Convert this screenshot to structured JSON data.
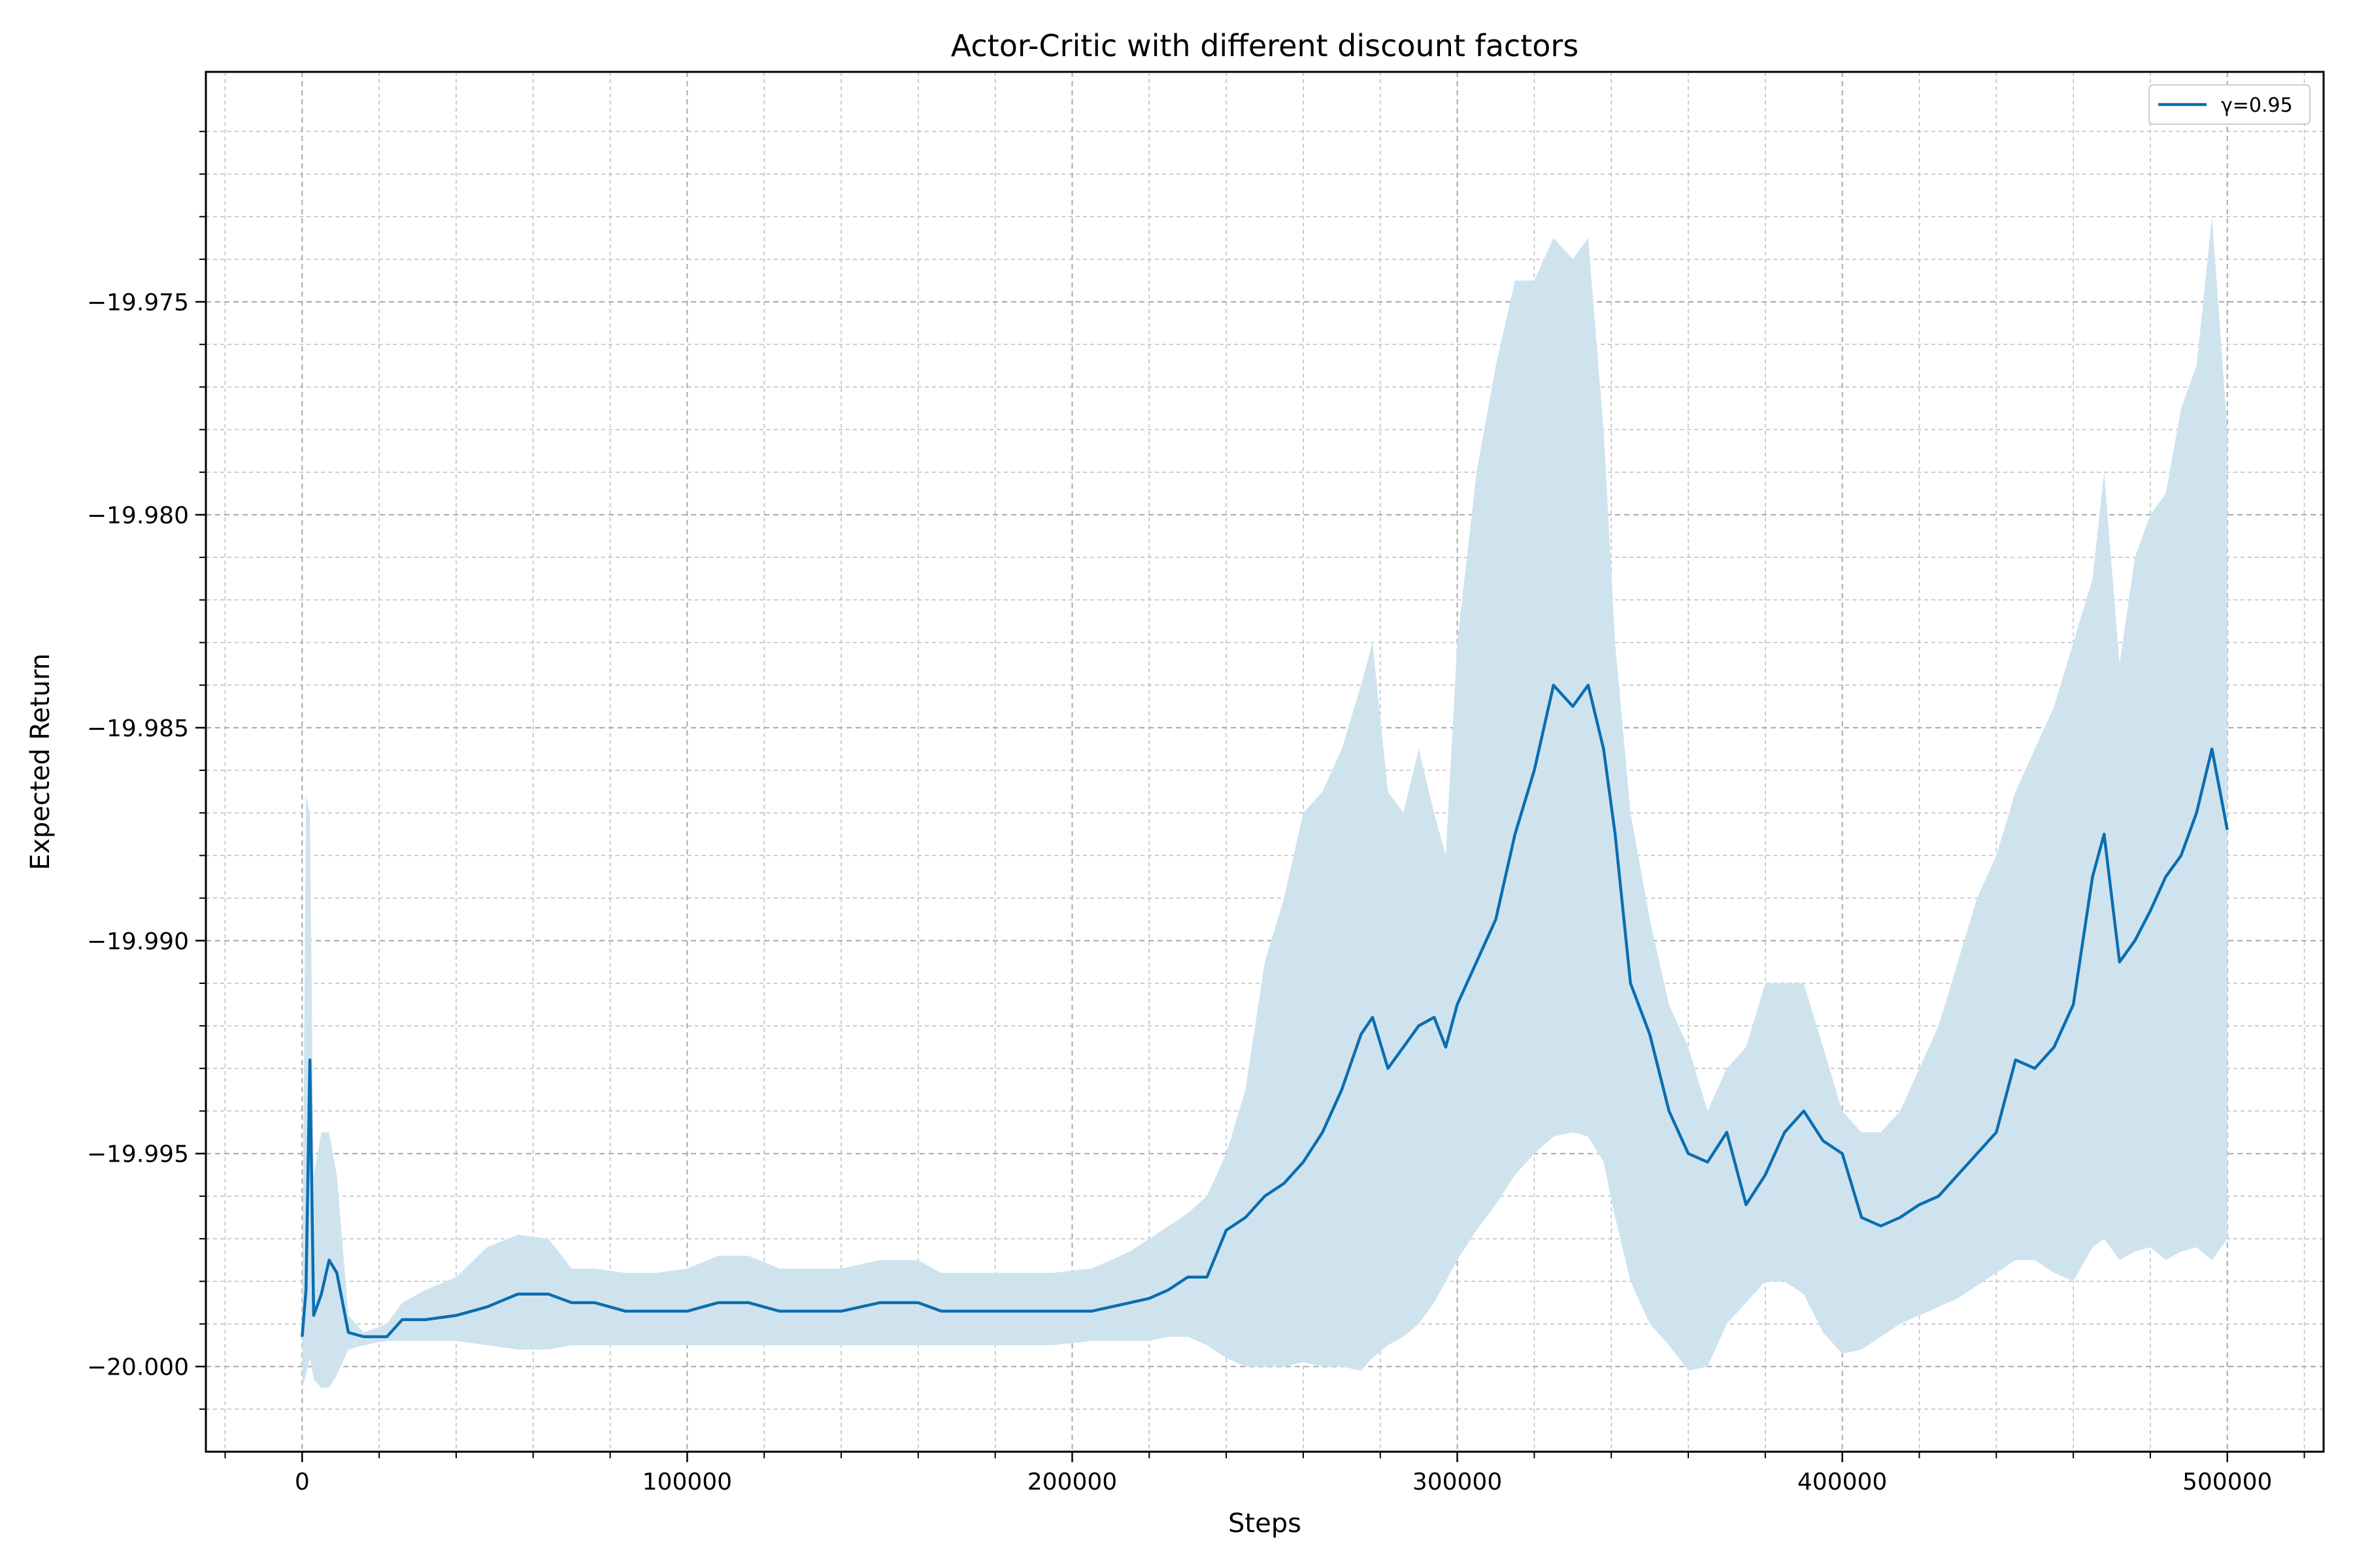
{
  "chart_data": {
    "type": "line",
    "title": "Actor-Critic with different discount factors",
    "xlabel": "Steps",
    "ylabel": "Expected Return",
    "xlim": [
      -25000,
      525000
    ],
    "ylim": [
      -20.002,
      -19.9696
    ],
    "x_ticks": [
      0,
      100000,
      200000,
      300000,
      400000,
      500000
    ],
    "x_tick_labels": [
      "0",
      "100000",
      "200000",
      "300000",
      "400000",
      "500000"
    ],
    "y_ticks": [
      -20.0,
      -19.995,
      -19.99,
      -19.985,
      -19.98,
      -19.975
    ],
    "y_tick_labels": [
      "−20.000",
      "−19.995",
      "−19.990",
      "−19.985",
      "−19.980",
      "−19.975"
    ],
    "grid": "major and minor, dashed",
    "legend_position": "top-right",
    "series": [
      {
        "name": "γ=0.95",
        "color": "#0a6eb0",
        "band_color": "#cfe3ef",
        "x": [
          0,
          1000,
          2000,
          3000,
          5000,
          7000,
          9000,
          12000,
          16000,
          22000,
          26000,
          32000,
          40000,
          48000,
          56000,
          64000,
          70000,
          76000,
          84000,
          92000,
          100000,
          108000,
          116000,
          124000,
          132000,
          140000,
          150000,
          160000,
          166000,
          175000,
          185000,
          195000,
          205000,
          215000,
          220000,
          225000,
          230000,
          235000,
          240000,
          245000,
          250000,
          255000,
          260000,
          265000,
          270000,
          275000,
          278000,
          282000,
          286000,
          290000,
          294000,
          297000,
          300000,
          305000,
          310000,
          315000,
          320000,
          325000,
          330000,
          334000,
          338000,
          341000,
          345000,
          350000,
          355000,
          360000,
          365000,
          370000,
          375000,
          380000,
          385000,
          390000,
          395000,
          400000,
          405000,
          410000,
          415000,
          420000,
          425000,
          430000,
          435000,
          440000,
          445000,
          450000,
          455000,
          460000,
          465000,
          468000,
          472000,
          476000,
          480000,
          484000,
          488000,
          492000,
          496000,
          500000
        ],
        "y": [
          -19.9993,
          -19.9982,
          -19.9928,
          -19.9988,
          -19.9983,
          -19.9975,
          -19.9978,
          -19.9992,
          -19.9993,
          -19.9993,
          -19.9989,
          -19.9989,
          -19.9988,
          -19.9986,
          -19.9983,
          -19.9983,
          -19.9985,
          -19.9985,
          -19.9987,
          -19.9987,
          -19.9987,
          -19.9985,
          -19.9985,
          -19.9987,
          -19.9987,
          -19.9987,
          -19.9985,
          -19.9985,
          -19.9987,
          -19.9987,
          -19.9987,
          -19.9987,
          -19.9987,
          -19.9985,
          -19.9984,
          -19.9982,
          -19.9979,
          -19.9979,
          -19.9968,
          -19.9965,
          -19.996,
          -19.9957,
          -19.9952,
          -19.9945,
          -19.9935,
          -19.9922,
          -19.9918,
          -19.993,
          -19.9925,
          -19.992,
          -19.9918,
          -19.9925,
          -19.9915,
          -19.9905,
          -19.9895,
          -19.9875,
          -19.986,
          -19.984,
          -19.9845,
          -19.984,
          -19.9855,
          -19.9875,
          -19.991,
          -19.9922,
          -19.994,
          -19.995,
          -19.9952,
          -19.9945,
          -19.9962,
          -19.9955,
          -19.9945,
          -19.994,
          -19.9947,
          -19.995,
          -19.9965,
          -19.9967,
          -19.9965,
          -19.9962,
          -19.996,
          -19.9955,
          -19.995,
          -19.9945,
          -19.9928,
          -19.993,
          -19.9925,
          -19.9915,
          -19.9885,
          -19.9875,
          -19.9905,
          -19.99,
          -19.9893,
          -19.9885,
          -19.988,
          -19.987,
          -19.9855,
          -19.9874
        ],
        "upper": [
          -19.9985,
          -19.9866,
          -19.987,
          -19.9955,
          -19.9945,
          -19.9945,
          -19.9955,
          -19.9988,
          -19.9992,
          -19.999,
          -19.9985,
          -19.9982,
          -19.9979,
          -19.9972,
          -19.9969,
          -19.997,
          -19.9977,
          -19.9977,
          -19.9978,
          -19.9978,
          -19.9977,
          -19.9974,
          -19.9974,
          -19.9977,
          -19.9977,
          -19.9977,
          -19.9975,
          -19.9975,
          -19.9978,
          -19.9978,
          -19.9978,
          -19.9978,
          -19.9977,
          -19.9973,
          -19.997,
          -19.9967,
          -19.9964,
          -19.996,
          -19.995,
          -19.9935,
          -19.9905,
          -19.989,
          -19.987,
          -19.9865,
          -19.9855,
          -19.984,
          -19.983,
          -19.9865,
          -19.987,
          -19.9855,
          -19.987,
          -19.988,
          -19.983,
          -19.979,
          -19.9765,
          -19.9745,
          -19.9745,
          -19.9735,
          -19.974,
          -19.9735,
          -19.978,
          -19.983,
          -19.987,
          -19.9895,
          -19.9915,
          -19.9925,
          -19.994,
          -19.993,
          -19.9925,
          -19.991,
          -19.991,
          -19.991,
          -19.9925,
          -19.994,
          -19.9945,
          -19.9945,
          -19.994,
          -19.993,
          -19.992,
          -19.9905,
          -19.989,
          -19.988,
          -19.9865,
          -19.9855,
          -19.9845,
          -19.983,
          -19.9815,
          -19.979,
          -19.9835,
          -19.981,
          -19.98,
          -19.9795,
          -19.9775,
          -19.9765,
          -19.973,
          -19.978
        ],
        "lower": [
          -20.0005,
          -20.0002,
          -19.9998,
          -20.0003,
          -20.0005,
          -20.0005,
          -20.0002,
          -19.9996,
          -19.9995,
          -19.9994,
          -19.9994,
          -19.9994,
          -19.9994,
          -19.9995,
          -19.9996,
          -19.9996,
          -19.9995,
          -19.9995,
          -19.9995,
          -19.9995,
          -19.9995,
          -19.9995,
          -19.9995,
          -19.9995,
          -19.9995,
          -19.9995,
          -19.9995,
          -19.9995,
          -19.9995,
          -19.9995,
          -19.9995,
          -19.9995,
          -19.9994,
          -19.9994,
          -19.9994,
          -19.9993,
          -19.9993,
          -19.9995,
          -19.9998,
          -20.0,
          -20.0,
          -20.0,
          -19.9999,
          -20.0,
          -20.0,
          -20.0001,
          -19.9998,
          -19.9995,
          -19.9993,
          -19.999,
          -19.9985,
          -19.998,
          -19.9975,
          -19.9968,
          -19.9962,
          -19.9955,
          -19.995,
          -19.9946,
          -19.9945,
          -19.9946,
          -19.9952,
          -19.9965,
          -19.998,
          -19.999,
          -19.9995,
          -20.0001,
          -20.0,
          -19.999,
          -19.9985,
          -19.998,
          -19.998,
          -19.9983,
          -19.9992,
          -19.9997,
          -19.9996,
          -19.9993,
          -19.999,
          -19.9988,
          -19.9986,
          -19.9984,
          -19.9981,
          -19.9978,
          -19.9975,
          -19.9975,
          -19.9978,
          -19.998,
          -19.9972,
          -19.997,
          -19.9975,
          -19.9973,
          -19.9972,
          -19.9975,
          -19.9973,
          -19.9972,
          -19.9975,
          -19.997
        ]
      }
    ]
  }
}
